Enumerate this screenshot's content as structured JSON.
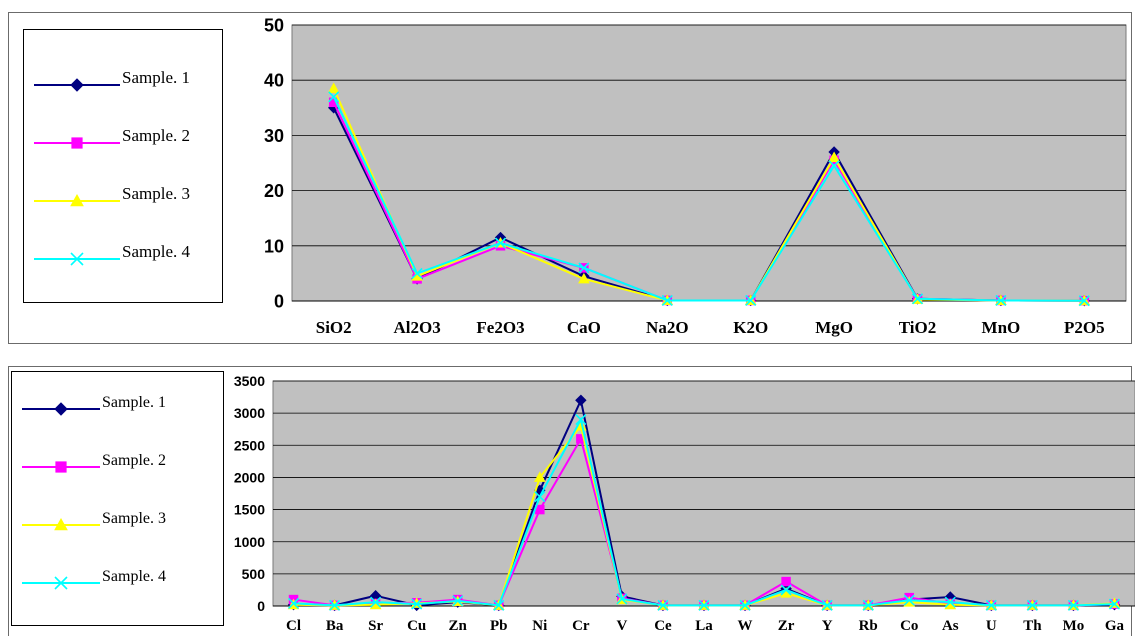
{
  "colors": {
    "plot_bg": "#c0c0c0",
    "grid": "#000000",
    "sample1": "#000080",
    "sample2": "#ff00ff",
    "sample3": "#ffff00",
    "sample4": "#00ffff"
  },
  "chart_data": [
    {
      "type": "line",
      "title": "",
      "xlabel": "",
      "ylabel": "",
      "categories": [
        "SiO2",
        "Al2O3",
        "Fe2O3",
        "CaO",
        "Na2O",
        "K2O",
        "MgO",
        "TiO2",
        "MnO",
        "P2O5"
      ],
      "ylim": [
        0,
        50
      ],
      "yticks": [
        0,
        10,
        20,
        30,
        40,
        50
      ],
      "grid": true,
      "legend_position": "left",
      "series": [
        {
          "name": "Sample. 1",
          "marker": "diamond",
          "values": [
            35,
            4,
            11.5,
            4.5,
            0.1,
            0.1,
            27,
            0.4,
            0.1,
            0.05
          ]
        },
        {
          "name": "Sample. 2",
          "marker": "square",
          "values": [
            36,
            4,
            10,
            6,
            0.1,
            0.1,
            25.5,
            0.4,
            0.1,
            0.05
          ]
        },
        {
          "name": "Sample. 3",
          "marker": "triangle",
          "values": [
            38.5,
            4.5,
            10.5,
            4,
            0.1,
            0.1,
            26,
            0.3,
            0.1,
            0.05
          ]
        },
        {
          "name": "Sample. 4",
          "marker": "x",
          "values": [
            37,
            5,
            10.5,
            6,
            0.1,
            0.1,
            24.5,
            0.4,
            0.1,
            0.05
          ]
        }
      ]
    },
    {
      "type": "line",
      "title": "",
      "xlabel": "",
      "ylabel": "",
      "categories": [
        "Cl",
        "Ba",
        "Sr",
        "Cu",
        "Zn",
        "Pb",
        "Ni",
        "Cr",
        "V",
        "Ce",
        "La",
        "W",
        "Zr",
        "Y",
        "Rb",
        "Co",
        "As",
        "U",
        "Th",
        "Mo",
        "Ga"
      ],
      "ylim": [
        0,
        3500
      ],
      "yticks": [
        0,
        500,
        1000,
        1500,
        2000,
        2500,
        3000,
        3500
      ],
      "grid": true,
      "legend_position": "left",
      "series": [
        {
          "name": "Sample. 1",
          "marker": "diamond",
          "values": [
            20,
            10,
            160,
            10,
            60,
            10,
            1800,
            3200,
            150,
            10,
            10,
            10,
            270,
            10,
            10,
            100,
            140,
            10,
            10,
            10,
            20
          ]
        },
        {
          "name": "Sample. 2",
          "marker": "square",
          "values": [
            100,
            10,
            40,
            50,
            100,
            10,
            1500,
            2600,
            120,
            10,
            10,
            10,
            380,
            10,
            10,
            130,
            40,
            10,
            10,
            10,
            30
          ]
        },
        {
          "name": "Sample. 3",
          "marker": "triangle",
          "values": [
            20,
            10,
            20,
            40,
            70,
            10,
            2000,
            2800,
            100,
            10,
            10,
            10,
            200,
            10,
            10,
            60,
            20,
            10,
            10,
            10,
            40
          ]
        },
        {
          "name": "Sample. 4",
          "marker": "x",
          "values": [
            40,
            10,
            60,
            30,
            80,
            10,
            1700,
            2900,
            110,
            10,
            10,
            10,
            250,
            10,
            10,
            90,
            60,
            10,
            10,
            10,
            30
          ]
        }
      ]
    }
  ]
}
